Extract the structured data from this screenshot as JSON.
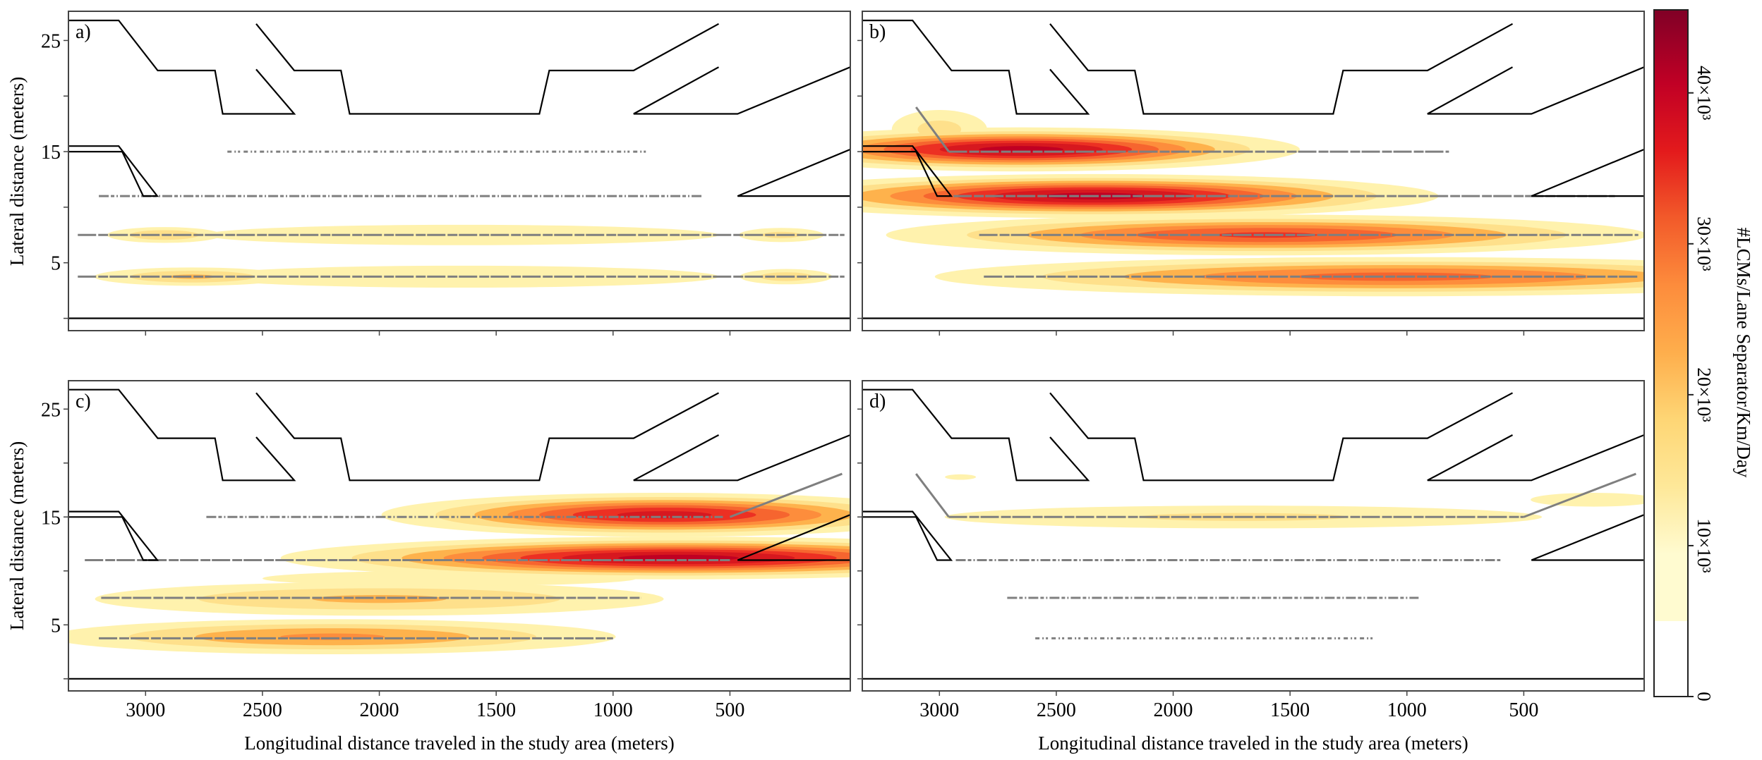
{
  "chart_data": {
    "type": "heatmap",
    "title": "",
    "xlabel": "Longitudinal distance traveled in the study area (meters)",
    "ylabel": "Lateral distance (meters)",
    "x_reversed": true,
    "xlim": [
      3330,
      -15
    ],
    "ylim": [
      -0.6,
      27.5
    ],
    "xticks": [
      3000,
      2500,
      2000,
      1500,
      1000,
      500
    ],
    "xtick_labels": [
      "3000",
      "2500",
      "2000",
      "1500",
      "1000",
      "500"
    ],
    "yticks": [
      0,
      5,
      10,
      15,
      20,
      25
    ],
    "ytick_labels": [
      "",
      "5",
      "",
      "15",
      "",
      "25"
    ],
    "grid": false,
    "colorbar": {
      "label": "#LCMs/Lane Separator/Km/Day",
      "range": [
        0,
        45.5
      ],
      "units_multiplier": 1000,
      "ticks": [
        0,
        10,
        20,
        30,
        40
      ],
      "tick_labels": [
        "0",
        "10×10³",
        "20×10³",
        "30×10³",
        "40×10³"
      ],
      "white_below": 5,
      "stops": [
        {
          "v": 5,
          "color": "#fffbd0"
        },
        {
          "v": 10,
          "color": "#fee899"
        },
        {
          "v": 15,
          "color": "#fed675"
        },
        {
          "v": 20,
          "color": "#feae4c"
        },
        {
          "v": 25,
          "color": "#fd8c3c"
        },
        {
          "v": 30,
          "color": "#f25a2a"
        },
        {
          "v": 35,
          "color": "#e31a1c"
        },
        {
          "v": 40,
          "color": "#c10025"
        },
        {
          "v": 45.5,
          "color": "#800026"
        }
      ]
    },
    "contour_levels": [
      {
        "v": 5,
        "color": "#fff2ad"
      },
      {
        "v": 10,
        "color": "#fee08b"
      },
      {
        "v": 15,
        "color": "#feb24c"
      },
      {
        "v": 20,
        "color": "#fd8d3c"
      },
      {
        "v": 25,
        "color": "#f6652f"
      },
      {
        "v": 30,
        "color": "#ec3023"
      },
      {
        "v": 35,
        "color": "#d7181f"
      },
      {
        "v": 40,
        "color": "#c00023"
      }
    ],
    "road_outline": [
      [
        [
          3330,
          26.8
        ],
        [
          3115,
          26.8
        ],
        [
          2948,
          22.3
        ],
        [
          2703,
          22.3
        ],
        [
          2670,
          18.4
        ],
        [
          2364,
          18.4
        ],
        [
          2527,
          22.4
        ]
      ],
      [
        [
          2527,
          26.5
        ],
        [
          2364,
          22.3
        ],
        [
          2164,
          22.3
        ],
        [
          2127,
          18.4
        ],
        [
          1315,
          18.4
        ],
        [
          1273,
          22.3
        ],
        [
          912,
          22.3
        ],
        [
          548,
          26.5
        ]
      ],
      [
        [
          548,
          22.6
        ],
        [
          912,
          18.4
        ],
        [
          467,
          18.4
        ],
        [
          -15,
          22.6
        ]
      ],
      [
        [
          3330,
          15.5
        ],
        [
          3115,
          15.5
        ],
        [
          2950,
          11.0
        ],
        [
          3010,
          11.0
        ],
        [
          3100,
          15.0
        ],
        [
          3330,
          15.0
        ]
      ],
      [
        [
          -15,
          15.2
        ],
        [
          467,
          11.0
        ],
        [
          -15,
          11.0
        ]
      ],
      [
        [
          3330,
          0
        ],
        [
          -15,
          0
        ]
      ]
    ],
    "panels": [
      {
        "label": "a)",
        "lanes": [
          {
            "y": 15,
            "from": 2650,
            "to": 850,
            "density": "sparse"
          },
          {
            "y": 11,
            "from": 3200,
            "to": 620,
            "density": "medium"
          },
          {
            "y": 7.5,
            "from": 3290,
            "to": 10,
            "density": "dense"
          },
          {
            "y": 3.75,
            "from": 3290,
            "to": 10,
            "density": "dense"
          }
        ],
        "diagonals": [],
        "hotspots": [
          {
            "x": 1650,
            "y": 7.5,
            "sx": 1700,
            "sy": 1.3,
            "peak": 10
          },
          {
            "x": 2920,
            "y": 7.5,
            "sx": 300,
            "sy": 0.8,
            "peak": 15
          },
          {
            "x": 280,
            "y": 7.5,
            "sx": 250,
            "sy": 0.8,
            "peak": 12
          },
          {
            "x": 1650,
            "y": 3.75,
            "sx": 1700,
            "sy": 1.4,
            "peak": 10
          },
          {
            "x": 2800,
            "y": 3.75,
            "sx": 500,
            "sy": 0.9,
            "peak": 16
          },
          {
            "x": 260,
            "y": 3.75,
            "sx": 250,
            "sy": 0.8,
            "peak": 14
          }
        ]
      },
      {
        "label": "b)",
        "lanes": [
          {
            "y": 15,
            "from": 2960,
            "to": 820,
            "density": "dense"
          },
          {
            "y": 11,
            "from": 2940,
            "to": 110,
            "density": "dense"
          },
          {
            "y": 7.5,
            "from": 2830,
            "to": 10,
            "density": "dense"
          },
          {
            "y": 3.75,
            "from": 2810,
            "to": 10,
            "density": "dense"
          }
        ],
        "diagonals": [
          {
            "from": [
              3100,
              19.0
            ],
            "to": [
              2960,
              15.0
            ]
          }
        ],
        "hotspots": [
          {
            "x": 2650,
            "y": 15.2,
            "sx": 1050,
            "sy": 1.6,
            "peak": 42
          },
          {
            "x": 3000,
            "y": 17.0,
            "sx": 280,
            "sy": 2.2,
            "peak": 12
          },
          {
            "x": 2340,
            "y": 11.0,
            "sx": 1300,
            "sy": 1.6,
            "peak": 42
          },
          {
            "x": 1600,
            "y": 7.5,
            "sx": 1550,
            "sy": 1.6,
            "peak": 31
          },
          {
            "x": 1050,
            "y": 3.75,
            "sx": 1950,
            "sy": 1.6,
            "peak": 27
          }
        ]
      },
      {
        "label": "c)",
        "lanes": [
          {
            "y": 15,
            "from": 2740,
            "to": 530,
            "density": "medium"
          },
          {
            "y": 11,
            "from": 3260,
            "to": 500,
            "density": "dense"
          },
          {
            "y": 7.5,
            "from": 3190,
            "to": 880,
            "density": "dense"
          },
          {
            "y": 3.75,
            "from": 3200,
            "to": 1000,
            "density": "dense"
          }
        ],
        "diagonals": [
          {
            "from": [
              500,
              15.0
            ],
            "to": [
              20,
              19.0
            ]
          }
        ],
        "hotspots": [
          {
            "x": 780,
            "y": 15.2,
            "sx": 1100,
            "sy": 1.7,
            "peak": 37
          },
          {
            "x": 720,
            "y": 11.2,
            "sx": 1500,
            "sy": 1.6,
            "peak": 42
          },
          {
            "x": 2000,
            "y": 7.4,
            "sx": 1450,
            "sy": 1.7,
            "peak": 16
          },
          {
            "x": 2200,
            "y": 3.9,
            "sx": 1300,
            "sy": 1.6,
            "peak": 21
          },
          {
            "x": 1700,
            "y": 9.3,
            "sx": 1500,
            "sy": 1.2,
            "peak": 8
          }
        ]
      },
      {
        "label": "d)",
        "lanes": [
          {
            "y": 15,
            "from": 2960,
            "to": 500,
            "density": "dense"
          },
          {
            "y": 11,
            "from": 2930,
            "to": 600,
            "density": "medium"
          },
          {
            "y": 7.5,
            "from": 2710,
            "to": 950,
            "density": "medium"
          },
          {
            "y": 3.75,
            "from": 2590,
            "to": 1140,
            "density": "sparse"
          }
        ],
        "diagonals": [
          {
            "from": [
              3100,
              19.0
            ],
            "to": [
              2960,
              15.0
            ]
          },
          {
            "from": [
              500,
              15.0
            ],
            "to": [
              20,
              19.0
            ]
          }
        ],
        "hotspots": [
          {
            "x": 1700,
            "y": 15.0,
            "sx": 1850,
            "sy": 1.4,
            "peak": 11
          },
          {
            "x": 2910,
            "y": 18.7,
            "sx": 200,
            "sy": 0.7,
            "peak": 6
          },
          {
            "x": 200,
            "y": 16.6,
            "sx": 600,
            "sy": 1.3,
            "peak": 7
          }
        ]
      }
    ]
  }
}
